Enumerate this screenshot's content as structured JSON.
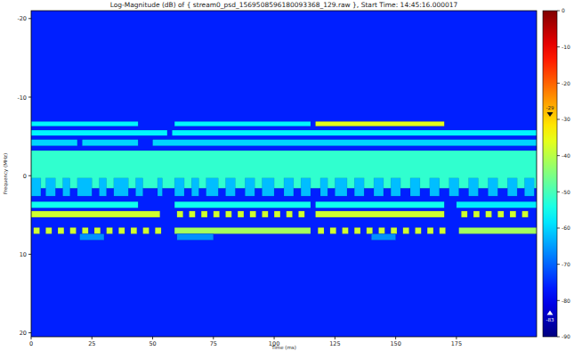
{
  "chart_data": {
    "type": "heatmap",
    "title": "Log-Magnitude (dB) of { stream0_psd_1569508596180093368_129.raw }, Start Time: 14:45:16.000017",
    "x_label": "Time (ms)",
    "y_label": "Frequency (MHz)",
    "xlim": [
      0,
      208
    ],
    "ylim": [
      -21,
      20.5
    ],
    "xticks": [
      0,
      25,
      50,
      75,
      100,
      125,
      150,
      175
    ],
    "yticks": [
      -20,
      -10,
      0,
      10,
      20
    ],
    "noise_floor_db": -76,
    "blocks": [
      [
        0,
        44,
        -6.9,
        -6.3,
        -57
      ],
      [
        59,
        115,
        -6.9,
        -6.3,
        -57
      ],
      [
        117,
        170,
        -6.9,
        -6.3,
        -36
      ],
      [
        0,
        56,
        -5.8,
        -5.1,
        -57
      ],
      [
        58,
        208,
        -5.8,
        -5.1,
        -57
      ],
      [
        0,
        19,
        -4.6,
        -3.8,
        -60
      ],
      [
        21,
        44,
        -4.6,
        -3.8,
        -60
      ],
      [
        50,
        208,
        -4.6,
        -3.8,
        -60
      ],
      [
        0,
        208,
        -3.2,
        1.6,
        -52
      ],
      [
        0,
        4,
        0.3,
        2.6,
        -62
      ],
      [
        6,
        10,
        0.3,
        2.6,
        -62
      ],
      [
        13,
        16,
        0.3,
        2.6,
        -62
      ],
      [
        19,
        25,
        0.3,
        2.6,
        -62
      ],
      [
        28,
        31,
        0.3,
        2.6,
        -62
      ],
      [
        34,
        40,
        0.3,
        2.6,
        -62
      ],
      [
        43,
        46,
        0.3,
        2.6,
        -62
      ],
      [
        52,
        54,
        0.3,
        2.6,
        -62
      ],
      [
        59,
        63,
        0.3,
        2.6,
        -62
      ],
      [
        66,
        69,
        0.3,
        2.6,
        -62
      ],
      [
        72,
        77,
        0.3,
        2.6,
        -62
      ],
      [
        80,
        84,
        0.3,
        2.6,
        -62
      ],
      [
        88,
        92,
        0.3,
        2.6,
        -62
      ],
      [
        95,
        100,
        0.3,
        2.6,
        -62
      ],
      [
        104,
        108,
        0.3,
        2.6,
        -62
      ],
      [
        111,
        115,
        0.3,
        2.6,
        -62
      ],
      [
        119,
        122,
        0.3,
        2.6,
        -62
      ],
      [
        125,
        130,
        0.3,
        2.6,
        -62
      ],
      [
        133,
        137,
        0.3,
        2.6,
        -62
      ],
      [
        141,
        145,
        0.3,
        2.6,
        -62
      ],
      [
        148,
        152,
        0.3,
        2.6,
        -62
      ],
      [
        156,
        160,
        0.3,
        2.6,
        -62
      ],
      [
        164,
        168,
        0.3,
        2.6,
        -62
      ],
      [
        172,
        176,
        0.3,
        2.6,
        -62
      ],
      [
        180,
        184,
        0.3,
        2.6,
        -62
      ],
      [
        188,
        192,
        0.3,
        2.6,
        -62
      ],
      [
        196,
        200,
        0.3,
        2.6,
        -62
      ],
      [
        203,
        207,
        0.3,
        2.6,
        -62
      ],
      [
        0,
        44,
        3.3,
        4.1,
        -55
      ],
      [
        59,
        115,
        3.3,
        4.1,
        -55
      ],
      [
        117,
        170,
        3.3,
        4.1,
        -55
      ],
      [
        175,
        208,
        3.3,
        4.1,
        -58
      ],
      [
        0,
        53,
        4.5,
        5.3,
        -38
      ],
      [
        60,
        62.5,
        4.5,
        5.3,
        -38
      ],
      [
        65,
        67.5,
        4.5,
        5.3,
        -38
      ],
      [
        70,
        72.5,
        4.5,
        5.3,
        -38
      ],
      [
        75,
        77.5,
        4.5,
        5.3,
        -38
      ],
      [
        80,
        82.5,
        4.5,
        5.3,
        -38
      ],
      [
        85,
        87.5,
        4.5,
        5.3,
        -38
      ],
      [
        90,
        92.5,
        4.5,
        5.3,
        -38
      ],
      [
        95,
        97.5,
        4.5,
        5.3,
        -38
      ],
      [
        100,
        102.5,
        4.5,
        5.3,
        -38
      ],
      [
        105,
        107.5,
        4.5,
        5.3,
        -38
      ],
      [
        110,
        112.5,
        4.5,
        5.3,
        -38
      ],
      [
        117,
        170,
        4.5,
        5.3,
        -38
      ],
      [
        177,
        179.5,
        4.5,
        5.3,
        -38
      ],
      [
        182,
        184.5,
        4.5,
        5.3,
        -38
      ],
      [
        187,
        189.5,
        4.5,
        5.3,
        -38
      ],
      [
        192,
        194.5,
        4.5,
        5.3,
        -38
      ],
      [
        197,
        199.5,
        4.5,
        5.3,
        -38
      ],
      [
        202,
        204.5,
        4.5,
        5.3,
        -38
      ],
      [
        1,
        3.5,
        6.6,
        7.4,
        -38
      ],
      [
        6,
        8.5,
        6.6,
        7.4,
        -38
      ],
      [
        11,
        13.5,
        6.6,
        7.4,
        -38
      ],
      [
        16,
        18.5,
        6.6,
        7.4,
        -38
      ],
      [
        21,
        23.5,
        6.6,
        7.4,
        -38
      ],
      [
        26,
        28.5,
        6.6,
        7.4,
        -38
      ],
      [
        31,
        33.5,
        6.6,
        7.4,
        -38
      ],
      [
        36,
        38.5,
        6.6,
        7.4,
        -38
      ],
      [
        41,
        43.5,
        6.6,
        7.4,
        -38
      ],
      [
        46,
        48.5,
        6.6,
        7.4,
        -38
      ],
      [
        51,
        53.5,
        6.6,
        7.4,
        -38
      ],
      [
        59,
        115,
        6.6,
        7.4,
        -42
      ],
      [
        118,
        120.5,
        6.6,
        7.4,
        -38
      ],
      [
        123,
        125.5,
        6.6,
        7.4,
        -38
      ],
      [
        128,
        130.5,
        6.6,
        7.4,
        -38
      ],
      [
        133,
        135.5,
        6.6,
        7.4,
        -38
      ],
      [
        138,
        140.5,
        6.6,
        7.4,
        -38
      ],
      [
        143,
        145.5,
        6.6,
        7.4,
        -38
      ],
      [
        148,
        150.5,
        6.6,
        7.4,
        -38
      ],
      [
        153,
        155.5,
        6.6,
        7.4,
        -38
      ],
      [
        158,
        160.5,
        6.6,
        7.4,
        -38
      ],
      [
        163,
        165.5,
        6.6,
        7.4,
        -38
      ],
      [
        168,
        170.5,
        6.6,
        7.4,
        -38
      ],
      [
        176,
        208,
        6.6,
        7.4,
        -42
      ],
      [
        20,
        30,
        7.4,
        8.2,
        -66
      ],
      [
        60,
        75,
        7.4,
        8.2,
        -66
      ],
      [
        140,
        150,
        7.4,
        8.2,
        -66
      ]
    ],
    "colorbar": {
      "range": [
        -90,
        0
      ],
      "ticks": [
        0,
        -10,
        -20,
        -30,
        -40,
        -50,
        -60,
        -70,
        -80,
        -90
      ],
      "markers": [
        -29,
        -83
      ]
    }
  }
}
